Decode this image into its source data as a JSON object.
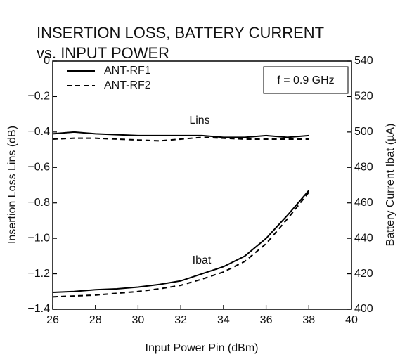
{
  "chart_data": {
    "type": "line",
    "title": [
      "INSERTION LOSS, BATTERY CURRENT",
      "vs. INPUT POWER"
    ],
    "xlabel": "Input Power  Pin (dBm)",
    "ylabel": "Insertion Loss  Lins (dB)",
    "y2label": "Battery Current  Ibat (µA)",
    "annotations": [
      "f = 0.9 GHz",
      "Lins",
      "Ibat"
    ],
    "x": [
      26,
      27,
      28,
      29,
      30,
      31,
      32,
      33,
      34,
      35,
      36,
      37,
      38
    ],
    "xlim": [
      26,
      40
    ],
    "xticks": [
      26,
      28,
      30,
      32,
      34,
      36,
      38,
      40
    ],
    "ylim": [
      -1.4,
      0
    ],
    "yticks": [
      {
        "value": -1.4,
        "label": "−1.4"
      },
      {
        "value": -1.2,
        "label": "−1.2"
      },
      {
        "value": -1,
        "label": "−1.0"
      },
      {
        "value": -0.8,
        "label": "−0.8"
      },
      {
        "value": -0.6,
        "label": "−0.6"
      },
      {
        "value": -0.4,
        "label": "−0.4"
      },
      {
        "value": -0.2,
        "label": "−0.2"
      },
      0
    ],
    "y2lim": [
      400,
      540
    ],
    "y2ticks": [
      400,
      420,
      440,
      460,
      480,
      500,
      520,
      540
    ],
    "grid": false,
    "legend": "upper left",
    "series": [
      {
        "name": "ANT-RF1",
        "color": "#000000",
        "dash": false,
        "values": [
          -0.41,
          -0.4,
          -0.41,
          -0.415,
          -0.42,
          -0.42,
          -0.42,
          -0.42,
          -0.43,
          -0.43,
          -0.42,
          -0.43,
          -0.42
        ]
      },
      {
        "name": "ANT-RF2",
        "color": "#000000",
        "dash": true,
        "values": [
          -0.44,
          -0.435,
          -0.435,
          -0.44,
          -0.445,
          -0.45,
          -0.44,
          -0.43,
          -0.435,
          -0.44,
          -0.44,
          -0.44,
          -0.44
        ]
      },
      {
        "color": "#000000",
        "dash": false,
        "axis": "y2",
        "values": [
          409.5,
          410,
          411,
          411.5,
          412.5,
          414,
          416,
          420,
          424,
          430,
          440,
          453,
          467
        ]
      },
      {
        "color": "#000000",
        "dash": true,
        "axis": "y2",
        "values": [
          407,
          407.5,
          408,
          409,
          410,
          411.5,
          413.5,
          417,
          421,
          427,
          437,
          451,
          466
        ]
      }
    ]
  }
}
